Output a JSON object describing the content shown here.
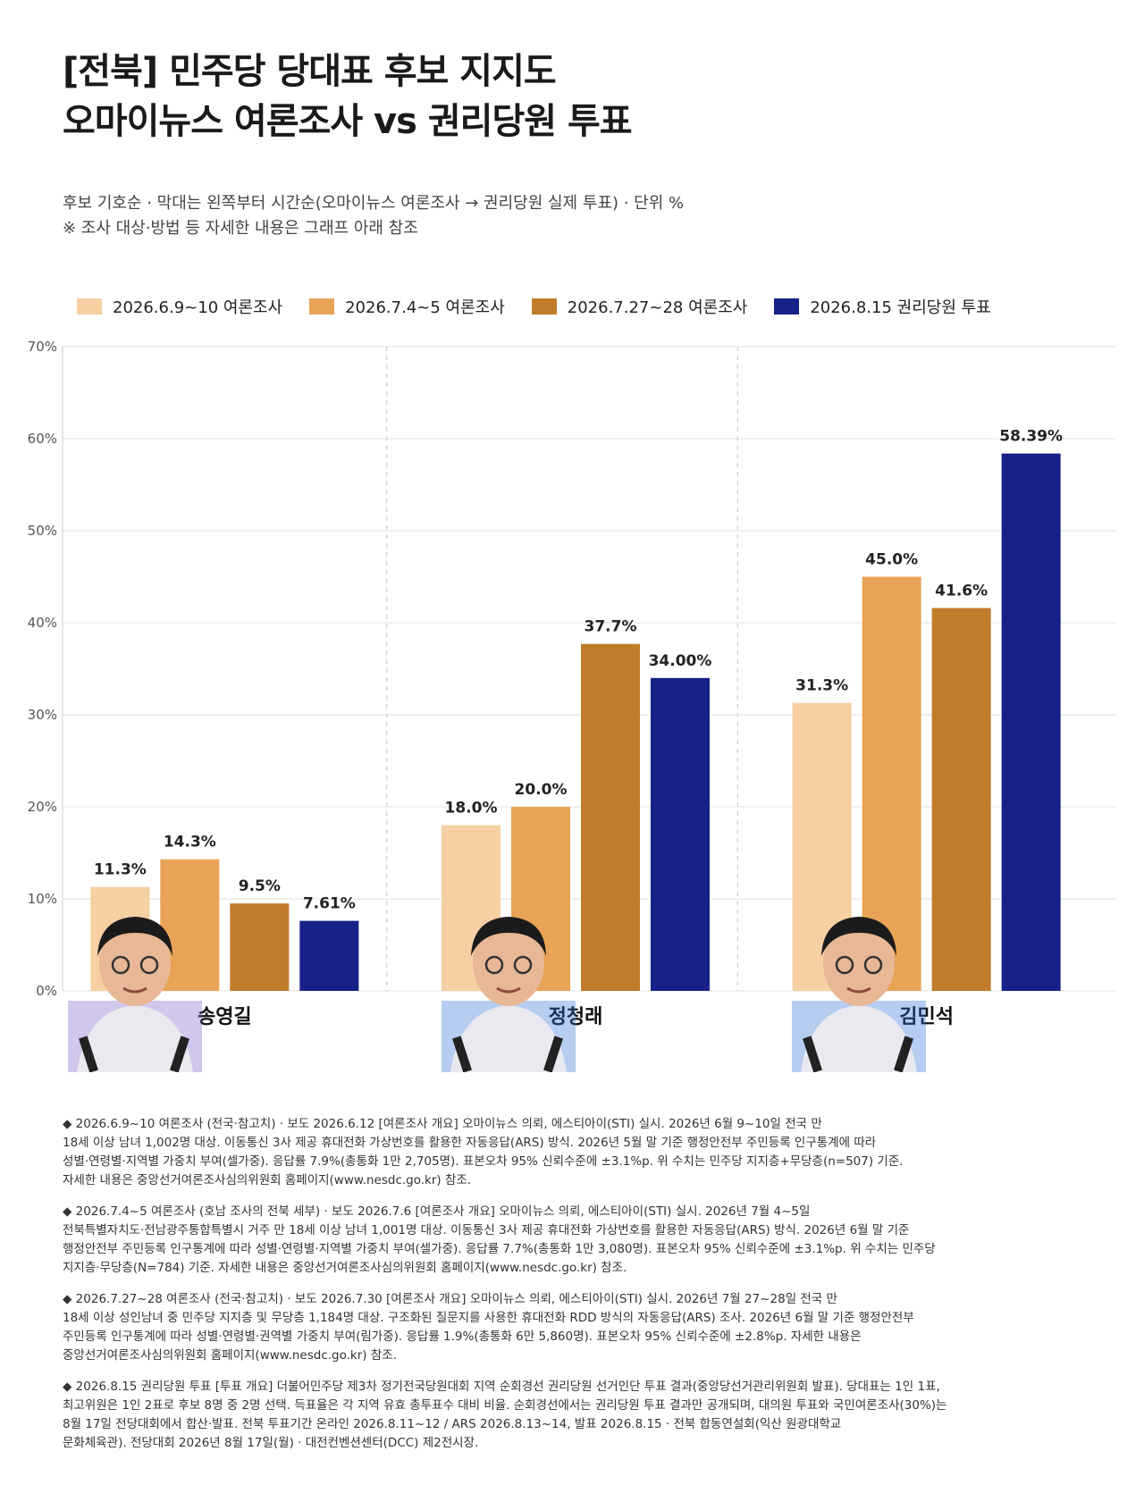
{
  "title_lines": [
    "[전북] 민주당 당대표 후보 지지도",
    "오마이뉴스 여론조사 vs 권리당원 투표"
  ],
  "subtitle_lines": [
    "후보 기호순 · 막대는 왼쪽부터 시간순(오마이뉴스 여론조사 → 권리당원 실제 투표) · 단위 %",
    "※ 조사 대상·방법 등 자세한 내용은 그래프 아래 참조"
  ],
  "chart_data": {
    "type": "bar",
    "categories": [
      "송영길",
      "정청래",
      "김민석"
    ],
    "series": [
      {
        "name": "2026.6.9~10 여론조사",
        "color": "#f6cfa3",
        "values": [
          11.3,
          18.0,
          31.3
        ],
        "labels": [
          "11.3%",
          "18.0%",
          "31.3%"
        ]
      },
      {
        "name": "2026.7.4~5 여론조사",
        "color": "#e8a356",
        "values": [
          14.3,
          20.0,
          45.0
        ],
        "labels": [
          "14.3%",
          "20.0%",
          "45.0%"
        ]
      },
      {
        "name": "2026.7.27~28 여론조사",
        "color": "#c07b2a",
        "values": [
          9.5,
          37.7,
          41.6
        ],
        "labels": [
          "9.5%",
          "37.7%",
          "41.6%"
        ]
      },
      {
        "name": "2026.8.15 권리당원 투표",
        "color": "#172187",
        "values": [
          7.61,
          34.0,
          58.39
        ],
        "labels": [
          "7.61%",
          "34.00%",
          "58.39%"
        ]
      }
    ],
    "ylim": [
      0,
      70
    ],
    "yticks": [
      "0%",
      "10%",
      "20%",
      "30%",
      "40%",
      "50%",
      "60%",
      "70%"
    ],
    "grid": true,
    "legend_position": "top"
  },
  "notes": [
    {
      "lines": [
        "◆ 2026.6.9~10 여론조사 (전국·참고치) · 보도 2026.6.12 [여론조사 개요] 오마이뉴스 의뢰, 에스티아이(STI) 실시. 2026년 6월 9~10일 전국 만",
        "18세 이상 남녀 1,002명 대상. 이동통신 3사 제공 휴대전화 가상번호를 활용한 자동응답(ARS) 방식. 2026년 5월 말 기준 행정안전부 주민등록 인구통계에 따라",
        "성별·연령별·지역별 가중치 부여(셀가중). 응답률 7.9%(총통화 1만 2,705명). 표본오차 95% 신뢰수준에 ±3.1%p. 위 수치는 민주당 지지층+무당층(n=507) 기준.",
        "자세한 내용은 중앙선거여론조사심의위원회 홈페이지(www.nesdc.go.kr) 참조."
      ]
    },
    {
      "lines": [
        "◆ 2026.7.4~5 여론조사 (호남 조사의 전북 세부) · 보도 2026.7.6 [여론조사 개요] 오마이뉴스 의뢰, 에스티아이(STI) 실시. 2026년 7월 4~5일",
        "전북특별자치도·전남광주통합특별시 거주 만 18세 이상 남녀 1,001명 대상. 이동통신 3사 제공 휴대전화 가상번호를 활용한 자동응답(ARS) 방식. 2026년 6월 말 기준",
        "행정안전부 주민등록 인구통계에 따라 성별·연령별·지역별 가중치 부여(셀가중). 응답률 7.7%(총통화 1만 3,080명). 표본오차 95% 신뢰수준에 ±3.1%p. 위 수치는 민주당",
        "지지층·무당층(N=784) 기준. 자세한 내용은 중앙선거여론조사심의위원회 홈페이지(www.nesdc.go.kr) 참조."
      ]
    },
    {
      "lines": [
        "◆ 2026.7.27~28 여론조사 (전국·참고치) · 보도 2026.7.30 [여론조사 개요] 오마이뉴스 의뢰, 에스티아이(STI) 실시. 2026년 7월 27~28일 전국 만",
        "18세 이상 성인남녀 중 민주당 지지층 및 무당층 1,184명 대상. 구조화된 질문지를 사용한 휴대전화 RDD 방식의 자동응답(ARS) 조사. 2026년 6월 말 기준 행정안전부",
        "주민등록 인구통계에 따라 성별·연령별·권역별 가중치 부여(림가중). 응답률 1.9%(총통화 6만 5,860명). 표본오차 95% 신뢰수준에 ±2.8%p. 자세한 내용은",
        "중앙선거여론조사심의위원회 홈페이지(www.nesdc.go.kr) 참조."
      ]
    },
    {
      "lines": [
        "◆ 2026.8.15 권리당원 투표 [투표 개요] 더불어민주당 제3차 정기전국당원대회 지역 순회경선 권리당원 선거인단 투표 결과(중앙당선거관리위원회 발표). 당대표는 1인 1표,",
        "최고위원은 1인 2표로 후보 8명 중 2명 선택. 득표율은 각 지역 유효 총투표수 대비 비율. 순회경선에서는 권리당원 투표 결과만 공개되며, 대의원 투표와 국민여론조사(30%)는",
        "8월 17일 전당대회에서 합산·발표. 전북 투표기간 온라인 2026.8.11~12 / ARS 2026.8.13~14, 발표 2026.8.15 · 전북 합동연설회(익산 원광대학교",
        "문화체육관). 전당대회 2026년 8월 17일(월) · 대전컨벤션센터(DCC) 제2전시장."
      ]
    }
  ]
}
